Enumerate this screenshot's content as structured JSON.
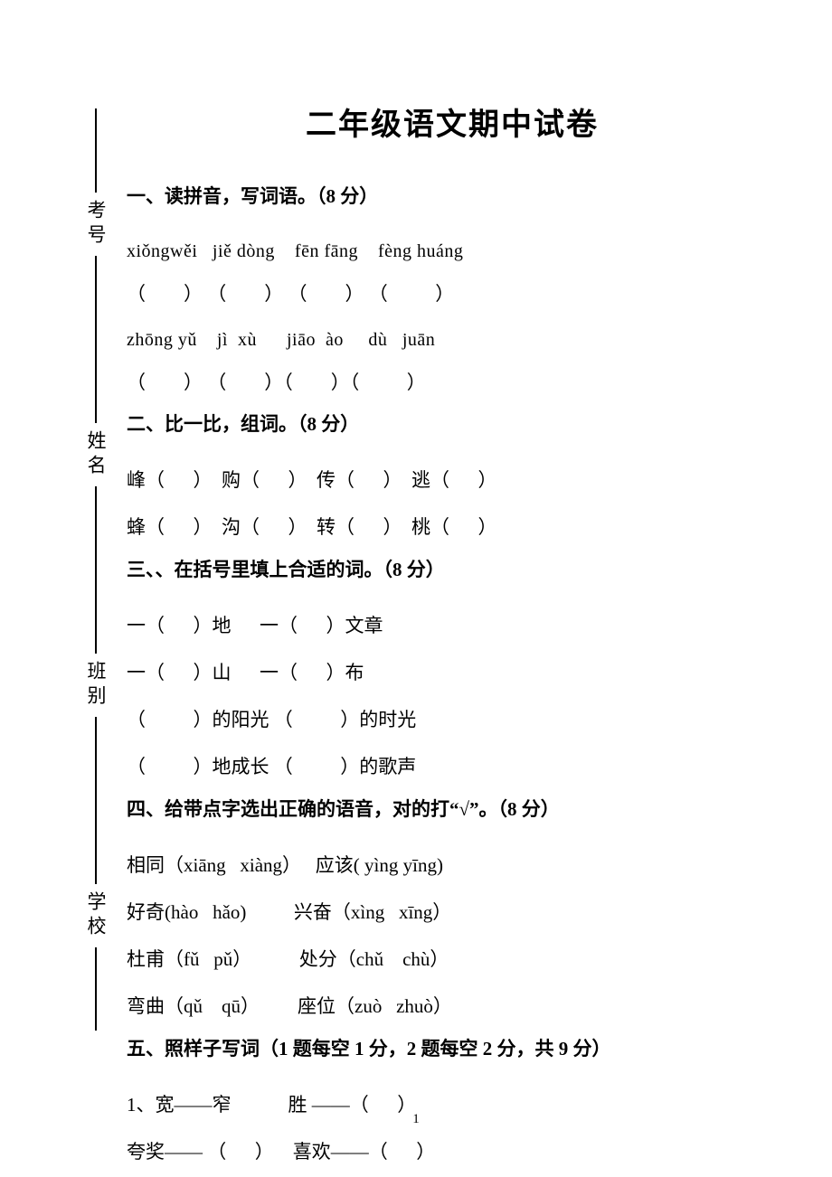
{
  "title": "二年级语文期中试卷",
  "sidebar": {
    "labels": [
      "考号",
      "姓名",
      "班别",
      "学校"
    ]
  },
  "sections": {
    "s1": {
      "header": "一、读拼音，写词语。（8 分）",
      "pinyin1": "xiǒngwěi   jiě dòng    fēn fāng    fèng huáng",
      "blanks1": "（        ） （        ） （        ） （          ）",
      "pinyin2": "zhōng yǔ    jì  xù      jiāo  ào     dù   juān",
      "blanks2": "（        ） （        ）（        ）（          ）"
    },
    "s2": {
      "header": "二、比一比，组词。（8 分）",
      "line1": "峰（      ）  购（      ）  传（      ）  逃（      ）",
      "line2": "蜂（      ）  沟（      ）  转（      ）  桃（      ）"
    },
    "s3": {
      "header": "三、、在括号里填上合适的词。（8 分）",
      "line1": "一（      ）地      一（      ）文章",
      "line2": "一（      ）山      一（      ）布",
      "line3": "（          ）的阳光 （          ）的时光",
      "line4": "（          ）地成长 （          ）的歌声"
    },
    "s4": {
      "header": "四、给带点字选出正确的语音，对的打“√”。（8 分）",
      "line1": "相同（xiāng   xiàng）   应该( yìng yīng)",
      "line2": "好奇(hào   hǎo)          兴奋（xìng   xīng）",
      "line3": "杜甫（fǔ   pǔ）          处分（chǔ    chù）",
      "line4": "弯曲（qǔ    qū）        座位（zuò   zhuò）"
    },
    "s5": {
      "header": "五、照样子写词（1 题每空 1 分，2 题每空 2 分，共 9 分）",
      "line1": "1、宽——窄            胜 ——（      ）",
      "line2": "夸奖—— （      ）    喜欢——（      ）"
    }
  },
  "pageNumber": "1",
  "colors": {
    "text": "#000000",
    "background": "#ffffff"
  }
}
